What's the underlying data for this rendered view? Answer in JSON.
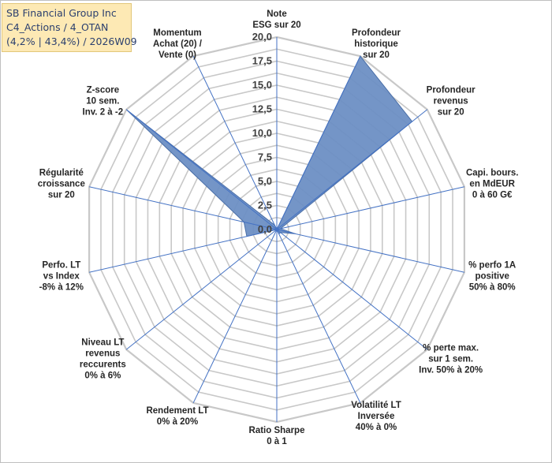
{
  "header": {
    "line1": "SB Financial Group Inc",
    "line2": "C4_Actions / 4_OTAN",
    "line3": "(4,2% | 43,4%) / 2026W09"
  },
  "chart_data": {
    "type": "radar",
    "rmax": 20,
    "ticks": [
      "0,0",
      "2,5",
      "5,0",
      "7,5",
      "10,0",
      "12,5",
      "15,0",
      "17,5",
      "20,0"
    ],
    "tick_values": [
      0,
      2.5,
      5,
      7.5,
      10,
      12.5,
      15,
      17.5,
      20
    ],
    "axes": [
      {
        "label": [
          "Note",
          "ESG sur 20"
        ],
        "value": 0
      },
      {
        "label": [
          "Profondeur",
          "historique",
          "sur 20"
        ],
        "value": 20
      },
      {
        "label": [
          "Profondeur",
          "revenus",
          "sur 20"
        ],
        "value": 18
      },
      {
        "label": [
          "Capi. bours.",
          "en MdEUR",
          "0 à 60 G€"
        ],
        "value": 0.4
      },
      {
        "label": [
          "% perfo 1A",
          "positive",
          "50% à 80%"
        ],
        "value": 2
      },
      {
        "label": [
          "% perte max.",
          "sur 1 sem.",
          "Inv. 50% à 20%"
        ],
        "value": 0.5
      },
      {
        "label": [
          "Volatilité LT",
          "Inversée",
          "40% à 0%"
        ],
        "value": 0.5
      },
      {
        "label": [
          "Ratio Sharpe",
          "0 à 1"
        ],
        "value": 0
      },
      {
        "label": [
          "Rendement LT",
          "0% à 20%"
        ],
        "value": 0
      },
      {
        "label": [
          "Niveau LT",
          "revenus",
          "reccurents",
          "0% à 6%"
        ],
        "value": 0
      },
      {
        "label": [
          "Perfo. LT",
          "vs Index",
          "-8% à 12%"
        ],
        "value": 3.2
      },
      {
        "label": [
          "Régularité",
          "croissance",
          "sur 20"
        ],
        "value": 3.5
      },
      {
        "label": [
          "Z-score",
          "10 sem.",
          "Inv. 2 à -2"
        ],
        "value": 20
      },
      {
        "label": [
          "Momentum",
          "Achat (20) /",
          "Vente (0)"
        ],
        "value": 0.5
      }
    ],
    "colors": {
      "fill": "#6d8fc4",
      "stroke": "#4a6fa8",
      "grid": "#c8c8c8",
      "spoke": "#4472c4"
    }
  }
}
